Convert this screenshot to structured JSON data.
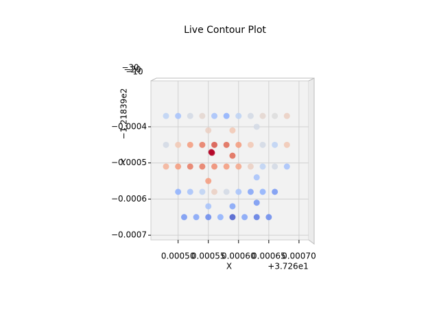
{
  "chart_data": {
    "type": "scatter",
    "title": "Live Contour Plot",
    "xlabel": "X",
    "ylabel": "Y",
    "x_offset": "+3.726e1",
    "y_offset": "−1.21839e2",
    "xlim": [
      0.000455,
      0.000716
    ],
    "ylim": [
      -0.000713,
      -0.000273
    ],
    "xticks": [
      {
        "value": 0.0005,
        "label": "0.00050"
      },
      {
        "value": 0.00055,
        "label": "0.00055"
      },
      {
        "value": 0.0006,
        "label": "0.00060"
      },
      {
        "value": 0.00065,
        "label": "0.00065"
      },
      {
        "value": 0.0007,
        "label": "0.00070"
      }
    ],
    "yticks": [
      {
        "value": -0.0004,
        "label": "−0.0004"
      },
      {
        "value": -0.0005,
        "label": "−0.0005"
      },
      {
        "value": -0.0006,
        "label": "−0.0006"
      },
      {
        "value": -0.0007,
        "label": "−0.0007"
      }
    ],
    "zticks": [
      {
        "value": -30,
        "label": "−30"
      },
      {
        "value": -20,
        "label": "−20"
      },
      {
        "value": -10,
        "label": "−10"
      }
    ],
    "grid": true,
    "colormap": "coolwarm",
    "zlim": [
      -33,
      -5
    ],
    "x": [
      0.00048,
      0.0005,
      0.00052,
      0.00054,
      0.00056,
      0.00058,
      0.0006,
      0.00062,
      0.00064,
      0.00066,
      0.00068,
      0.00048,
      0.0005,
      0.00052,
      0.00054,
      0.00056,
      0.00058,
      0.0006,
      0.00062,
      0.00064,
      0.00066,
      0.00068,
      0.00048,
      0.0005,
      0.00052,
      0.00054,
      0.00056,
      0.00058,
      0.0006,
      0.00062,
      0.00064,
      0.00066,
      0.00068,
      0.0005,
      0.00052,
      0.00054,
      0.00056,
      0.00058,
      0.0006,
      0.00062,
      0.00064,
      0.00066,
      0.00051,
      0.00053,
      0.00055,
      0.00057,
      0.00059,
      0.00061,
      0.00063,
      0.00065,
      0.00055,
      0.00055,
      0.00055,
      0.00059,
      0.00059,
      0.00059,
      0.00063,
      0.00063,
      0.00063,
      0.000555,
      0.000556
    ],
    "y": [
      -0.00037,
      -0.00037,
      -0.00037,
      -0.00037,
      -0.00037,
      -0.00037,
      -0.00037,
      -0.00037,
      -0.00037,
      -0.00037,
      -0.00037,
      -0.00045,
      -0.00045,
      -0.00045,
      -0.00045,
      -0.00045,
      -0.00045,
      -0.00045,
      -0.00045,
      -0.00045,
      -0.00045,
      -0.00045,
      -0.00051,
      -0.00051,
      -0.00051,
      -0.00051,
      -0.00051,
      -0.00051,
      -0.00051,
      -0.00051,
      -0.00051,
      -0.00051,
      -0.00051,
      -0.00058,
      -0.00058,
      -0.00058,
      -0.00058,
      -0.00058,
      -0.00058,
      -0.00058,
      -0.00058,
      -0.00058,
      -0.00065,
      -0.00065,
      -0.00065,
      -0.00065,
      -0.00065,
      -0.00065,
      -0.00065,
      -0.00065,
      -0.00041,
      -0.00055,
      -0.00062,
      -0.00041,
      -0.00048,
      -0.00062,
      -0.0004,
      -0.00054,
      -0.00061,
      -0.00047,
      -0.000472
    ],
    "values": [
      -22,
      -24,
      -20,
      -18,
      -24,
      -26,
      -22,
      -20,
      -18,
      -19,
      -17,
      -20,
      -16,
      -12,
      -10,
      -8,
      -9,
      -12,
      -16,
      -20,
      -22,
      -16,
      -14,
      -12,
      -10,
      -10,
      -11,
      -12,
      -13,
      -17,
      -22,
      -20,
      -24,
      -26,
      -24,
      -22,
      -17,
      -20,
      -24,
      -27,
      -26,
      -28,
      -28,
      -27,
      -29,
      -26,
      -32,
      -27,
      -30,
      -29,
      -17,
      -12,
      -24,
      -16,
      -9,
      -27,
      -20,
      -24,
      -28,
      -5,
      -5
    ]
  }
}
